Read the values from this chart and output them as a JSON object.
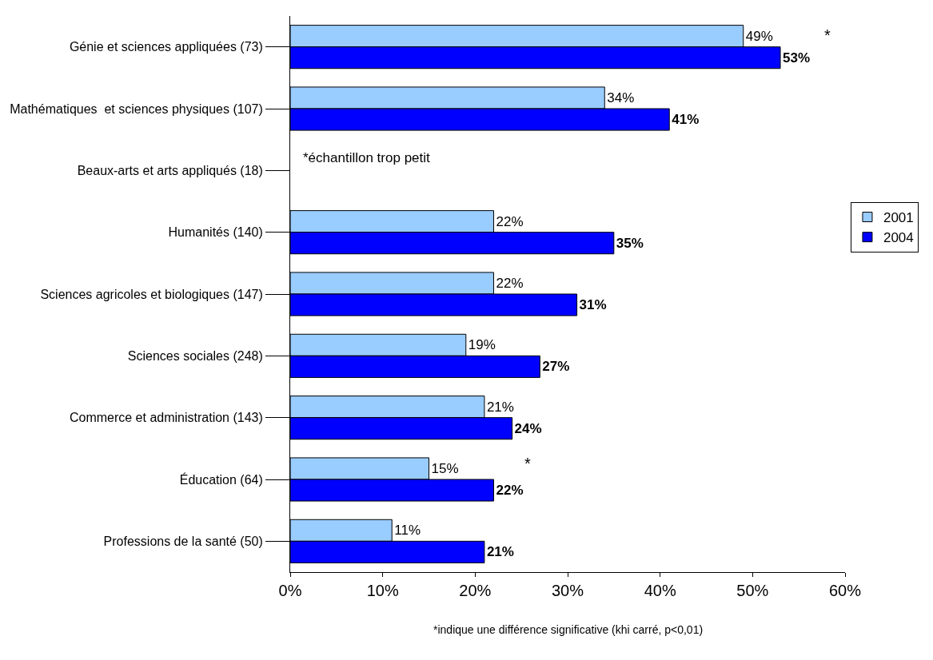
{
  "chart_data": {
    "type": "bar",
    "orientation": "horizontal",
    "categories": [
      "Génie et sciences appliquées (73)",
      "Mathématiques  et sciences physiques (107)",
      "Beaux-arts et arts appliqués (18)",
      "Humanités (140)",
      "Sciences agricoles et biologiques (147)",
      "Sciences sociales (248)",
      "Commerce et administration (143)",
      "Éducation (64)",
      "Professions de la santé (50)"
    ],
    "series": [
      {
        "name": "2001",
        "color": "#99ccff",
        "values": [
          49,
          34,
          null,
          22,
          22,
          19,
          21,
          15,
          11
        ],
        "value_labels": [
          "49%",
          "34%",
          null,
          "22%",
          "22%",
          "19%",
          "21%",
          "15%",
          "11%"
        ]
      },
      {
        "name": "2004",
        "color": "#0000ff",
        "values": [
          53,
          41,
          null,
          35,
          31,
          27,
          24,
          22,
          21
        ],
        "value_labels": [
          "53%",
          "41%",
          null,
          "35%",
          "31%",
          "27%",
          "24%",
          "22%",
          "21%"
        ]
      }
    ],
    "xlim": [
      0,
      60
    ],
    "xticks": [
      {
        "value": 0,
        "label": "0%"
      },
      {
        "value": 10,
        "label": "10%"
      },
      {
        "value": 20,
        "label": "20%"
      },
      {
        "value": 30,
        "label": "30%"
      },
      {
        "value": 40,
        "label": "40%"
      },
      {
        "value": 50,
        "label": "50%"
      },
      {
        "value": 60,
        "label": "60%"
      }
    ],
    "legend": "right",
    "annotations": [
      "*échantillon trop petit",
      "*",
      "*",
      "*indique une différence significative (khi carré, p<0,01)"
    ]
  }
}
